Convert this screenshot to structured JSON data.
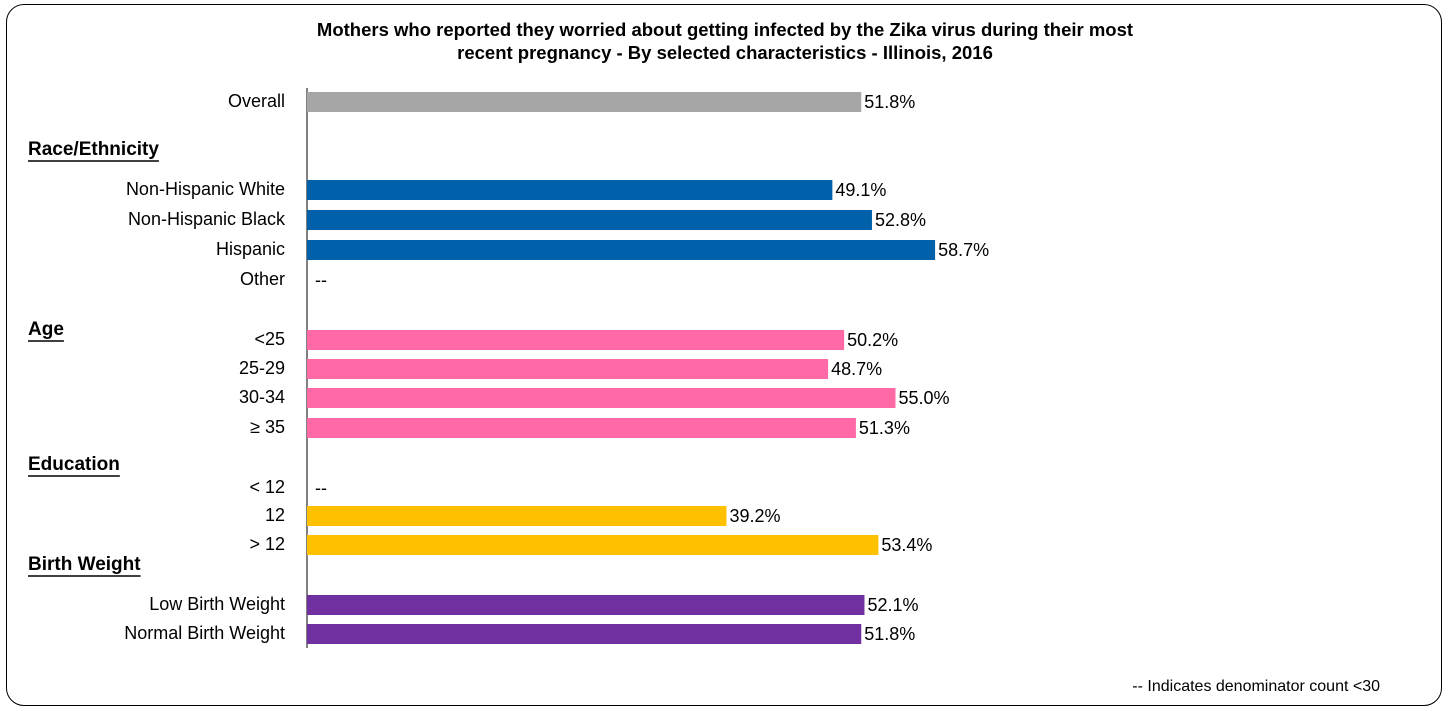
{
  "title": {
    "line1": "Mothers who reported they worried about getting infected by the Zika virus during their most",
    "line2": "recent pregnancy - By selected characteristics - Illinois, 2016"
  },
  "footnote": "-- Indicates denominator count <30",
  "colors": {
    "overall": "#A6A6A6",
    "race": "#0060AA",
    "age": "#FF69A6",
    "education": "#FFC000",
    "birth_weight": "#7030A0"
  },
  "chart_data": {
    "type": "bar",
    "orientation": "horizontal",
    "title": "Mothers who reported they worried about getting infected by the Zika virus during their most recent pregnancy - By selected characteristics - Illinois, 2016",
    "xlim": [
      0,
      100
    ],
    "grid": false,
    "groups": [
      {
        "heading": "",
        "color_key": "overall",
        "rows": [
          {
            "category": "Overall",
            "value": 51.8,
            "label": "51.8%"
          }
        ]
      },
      {
        "heading": "Race/Ethnicity",
        "color_key": "race",
        "rows": [
          {
            "category": "Non-Hispanic White",
            "value": 49.1,
            "label": "49.1%"
          },
          {
            "category": "Non-Hispanic Black",
            "value": 52.8,
            "label": "52.8%"
          },
          {
            "category": "Hispanic",
            "value": 58.7,
            "label": "58.7%"
          },
          {
            "category": "Other",
            "value": null,
            "label": "--"
          }
        ]
      },
      {
        "heading": "Age",
        "color_key": "age",
        "rows": [
          {
            "category": "<25",
            "value": 50.2,
            "label": "50.2%"
          },
          {
            "category": "25-29",
            "value": 48.7,
            "label": "48.7%"
          },
          {
            "category": "30-34",
            "value": 55.0,
            "label": "55.0%"
          },
          {
            "category": "≥ 35",
            "value": 51.3,
            "label": "51.3%"
          }
        ]
      },
      {
        "heading": "Education",
        "color_key": "education",
        "rows": [
          {
            "category": "< 12",
            "value": null,
            "label": "--"
          },
          {
            "category": "12",
            "value": 39.2,
            "label": "39.2%"
          },
          {
            "category": "> 12",
            "value": 53.4,
            "label": "53.4%"
          }
        ]
      },
      {
        "heading": "Birth Weight",
        "color_key": "birth_weight",
        "rows": [
          {
            "category": "Low Birth Weight",
            "value": 52.1,
            "label": "52.1%"
          },
          {
            "category": "Normal Birth Weight",
            "value": 51.8,
            "label": "51.8%"
          }
        ]
      }
    ]
  }
}
